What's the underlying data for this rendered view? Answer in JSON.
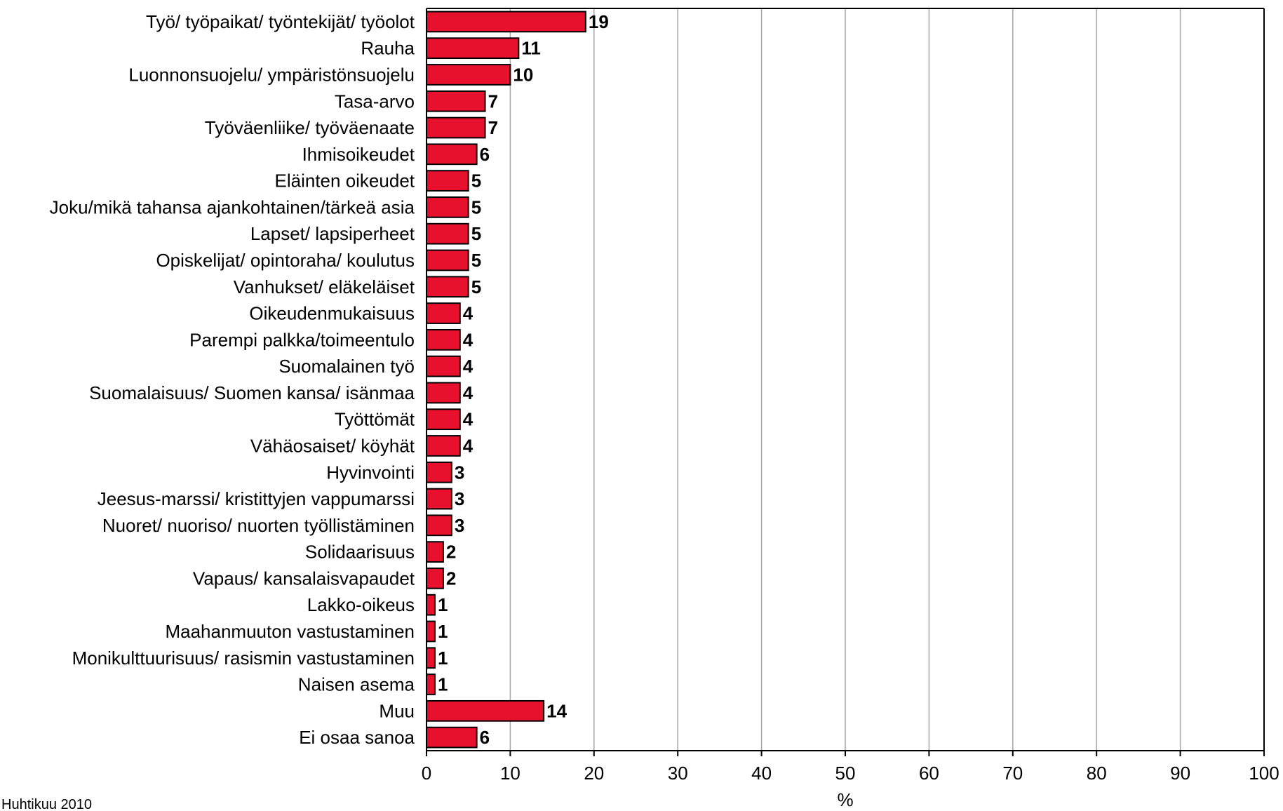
{
  "chart_data": {
    "type": "bar",
    "orientation": "horizontal",
    "categories": [
      "Työ/ työpaikat/ työntekijät/ työolot",
      "Rauha",
      "Luonnonsuojelu/ ympäristönsuojelu",
      "Tasa-arvo",
      "Työväenliike/ työväenaate",
      "Ihmisoikeudet",
      "Eläinten oikeudet",
      "Joku/mikä tahansa ajankohtainen/tärkeä asia",
      "Lapset/ lapsiperheet",
      "Opiskelijat/ opintoraha/ koulutus",
      "Vanhukset/ eläkeläiset",
      "Oikeudenmukaisuus",
      "Parempi palkka/toimeentulo",
      "Suomalainen työ",
      "Suomalaisuus/ Suomen kansa/ isänmaa",
      "Työttömät",
      "Vähäosaiset/ köyhät",
      "Hyvinvointi",
      "Jeesus-marssi/ kristittyjen vappumarssi",
      "Nuoret/ nuoriso/ nuorten työllistäminen",
      "Solidaarisuus",
      "Vapaus/ kansalaisvapaudet",
      "Lakko-oikeus",
      "Maahanmuuton vastustaminen",
      "Monikulttuurisuus/ rasismin vastustaminen",
      "Naisen asema",
      "Muu",
      "Ei osaa sanoa"
    ],
    "values": [
      19,
      11,
      10,
      7,
      7,
      6,
      5,
      5,
      5,
      5,
      5,
      4,
      4,
      4,
      4,
      4,
      4,
      3,
      3,
      3,
      2,
      2,
      1,
      1,
      1,
      1,
      14,
      6
    ],
    "value_labels": [
      "19",
      "11",
      "10",
      "7",
      "7",
      "6",
      "5",
      "5",
      "5",
      "5",
      "5",
      "4",
      "4",
      "4",
      "4",
      "4",
      "4",
      "3",
      "3",
      "3",
      "2",
      "2",
      "1",
      "1",
      "1",
      "1",
      "14",
      "6"
    ],
    "xlim": [
      0,
      100
    ],
    "xticks": [
      0,
      10,
      20,
      30,
      40,
      50,
      60,
      70,
      80,
      90,
      100
    ],
    "xtick_labels": [
      "0",
      "10",
      "20",
      "30",
      "40",
      "50",
      "60",
      "70",
      "80",
      "90",
      "100"
    ],
    "xlabel": "%",
    "ylabel": "",
    "title": "",
    "grid": "vertical",
    "bar_color": "#e8112d",
    "bar_edge_color": "#000000",
    "footnote": "Huhtikuu 2010"
  }
}
